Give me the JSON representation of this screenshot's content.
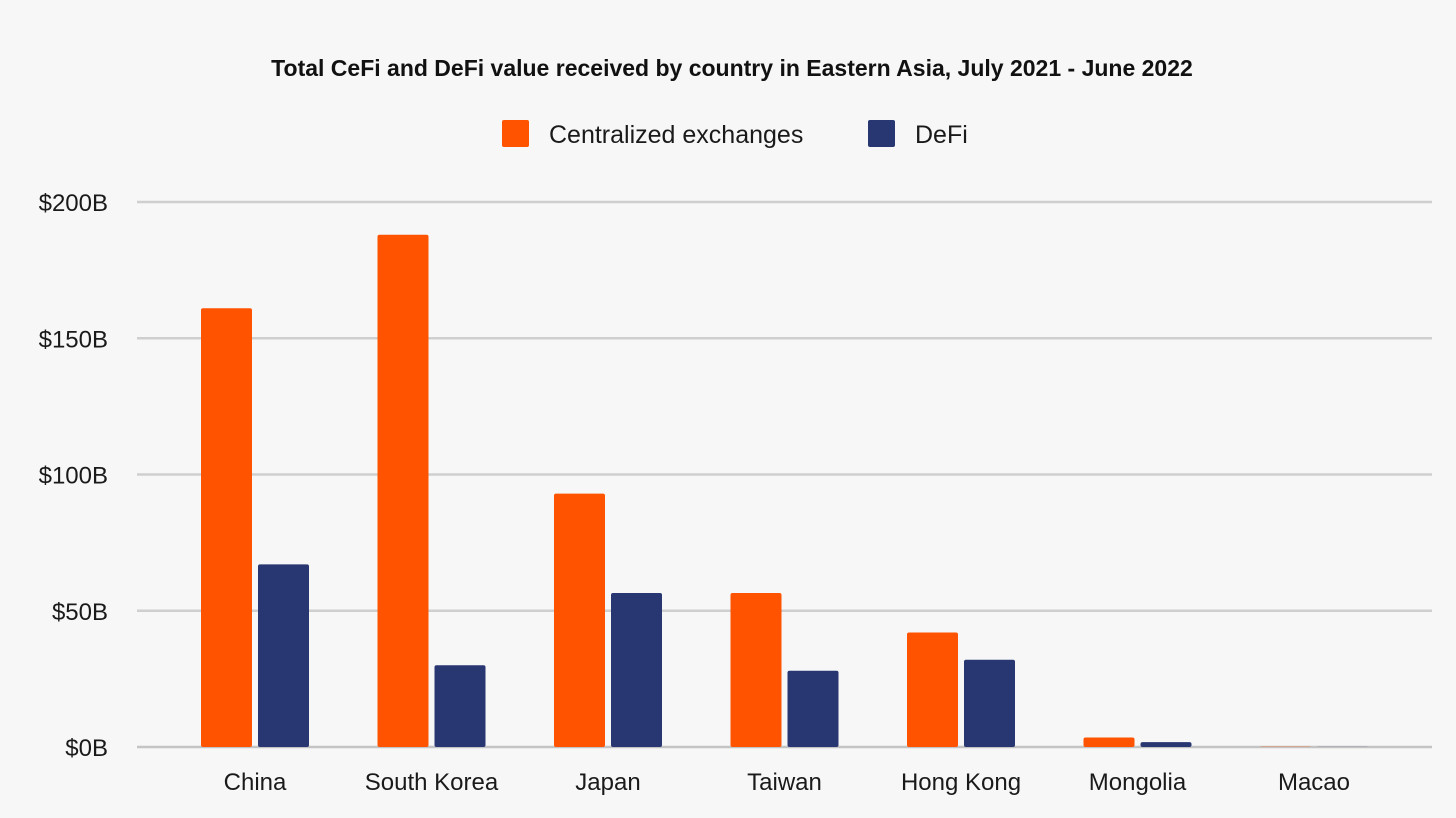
{
  "chart_data": {
    "type": "bar",
    "title": "Total CeFi and DeFi value received by country in Eastern Asia, July 2021 - June 2022",
    "xlabel": "",
    "ylabel": "",
    "categories": [
      "China",
      "South Korea",
      "Japan",
      "Taiwan",
      "Hong Kong",
      "Mongolia",
      "Macao"
    ],
    "series": [
      {
        "name": "Centralized exchanges",
        "color": "#ff5300",
        "values": [
          161,
          188,
          93,
          56.5,
          42,
          3.5,
          0.1
        ]
      },
      {
        "name": "DeFi",
        "color": "#283672",
        "values": [
          67,
          30,
          56.5,
          28,
          32,
          1.8,
          0.05
        ]
      }
    ],
    "ylim": [
      0,
      200
    ],
    "yticks": [
      {
        "value": 0,
        "label": "$0B"
      },
      {
        "value": 50,
        "label": "$50B"
      },
      {
        "value": 100,
        "label": "$100B"
      },
      {
        "value": 150,
        "label": "$150B"
      },
      {
        "value": 200,
        "label": "$200B"
      }
    ],
    "grid": true,
    "legend_position": "top-center"
  }
}
